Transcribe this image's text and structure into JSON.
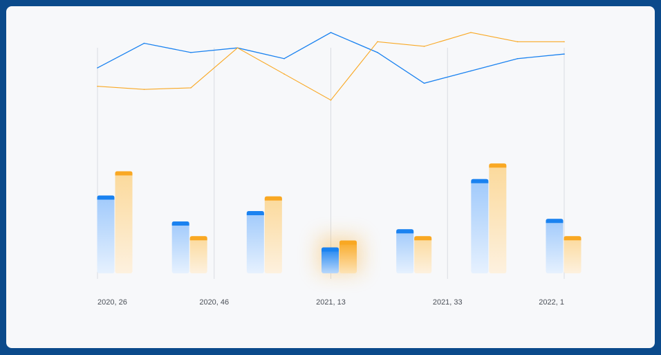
{
  "colors": {
    "frame": "#0b4a8b",
    "panel": "#f7f8fa",
    "blue": "#1a82f0",
    "orange": "#f9a823",
    "gridline": "#d9dce1"
  },
  "chart_data": {
    "type": "bar",
    "title": "",
    "xlabel": "",
    "ylabel": "",
    "grid": "vertical lines at labeled ticks",
    "legend": "none",
    "x_tick_labels": [
      "2020, 26",
      "2020, 46",
      "2021, 13",
      "2021, 33",
      "2022, 1"
    ],
    "bar_groups": 7,
    "highlighted_group": 3,
    "bars_ylim": [
      0,
      200
    ],
    "bar_series": [
      {
        "color": "blue",
        "values": [
          90,
          60,
          72,
          30,
          51,
          109,
          63
        ]
      },
      {
        "color": "orange",
        "values": [
          118,
          43,
          89,
          38,
          43,
          127,
          43
        ]
      }
    ],
    "lines_ylim": [
      0,
      100
    ],
    "line_x": [
      0,
      1,
      2,
      3,
      4,
      5,
      6,
      7,
      8,
      9,
      10
    ],
    "line_series": [
      {
        "color": "blue",
        "values": [
          77,
          93,
          87,
          90,
          83,
          100,
          87,
          67,
          75,
          83,
          86
        ]
      },
      {
        "color": "orange",
        "values": [
          65,
          63,
          64,
          90,
          73,
          56,
          94,
          91,
          100,
          94,
          94
        ]
      }
    ]
  }
}
